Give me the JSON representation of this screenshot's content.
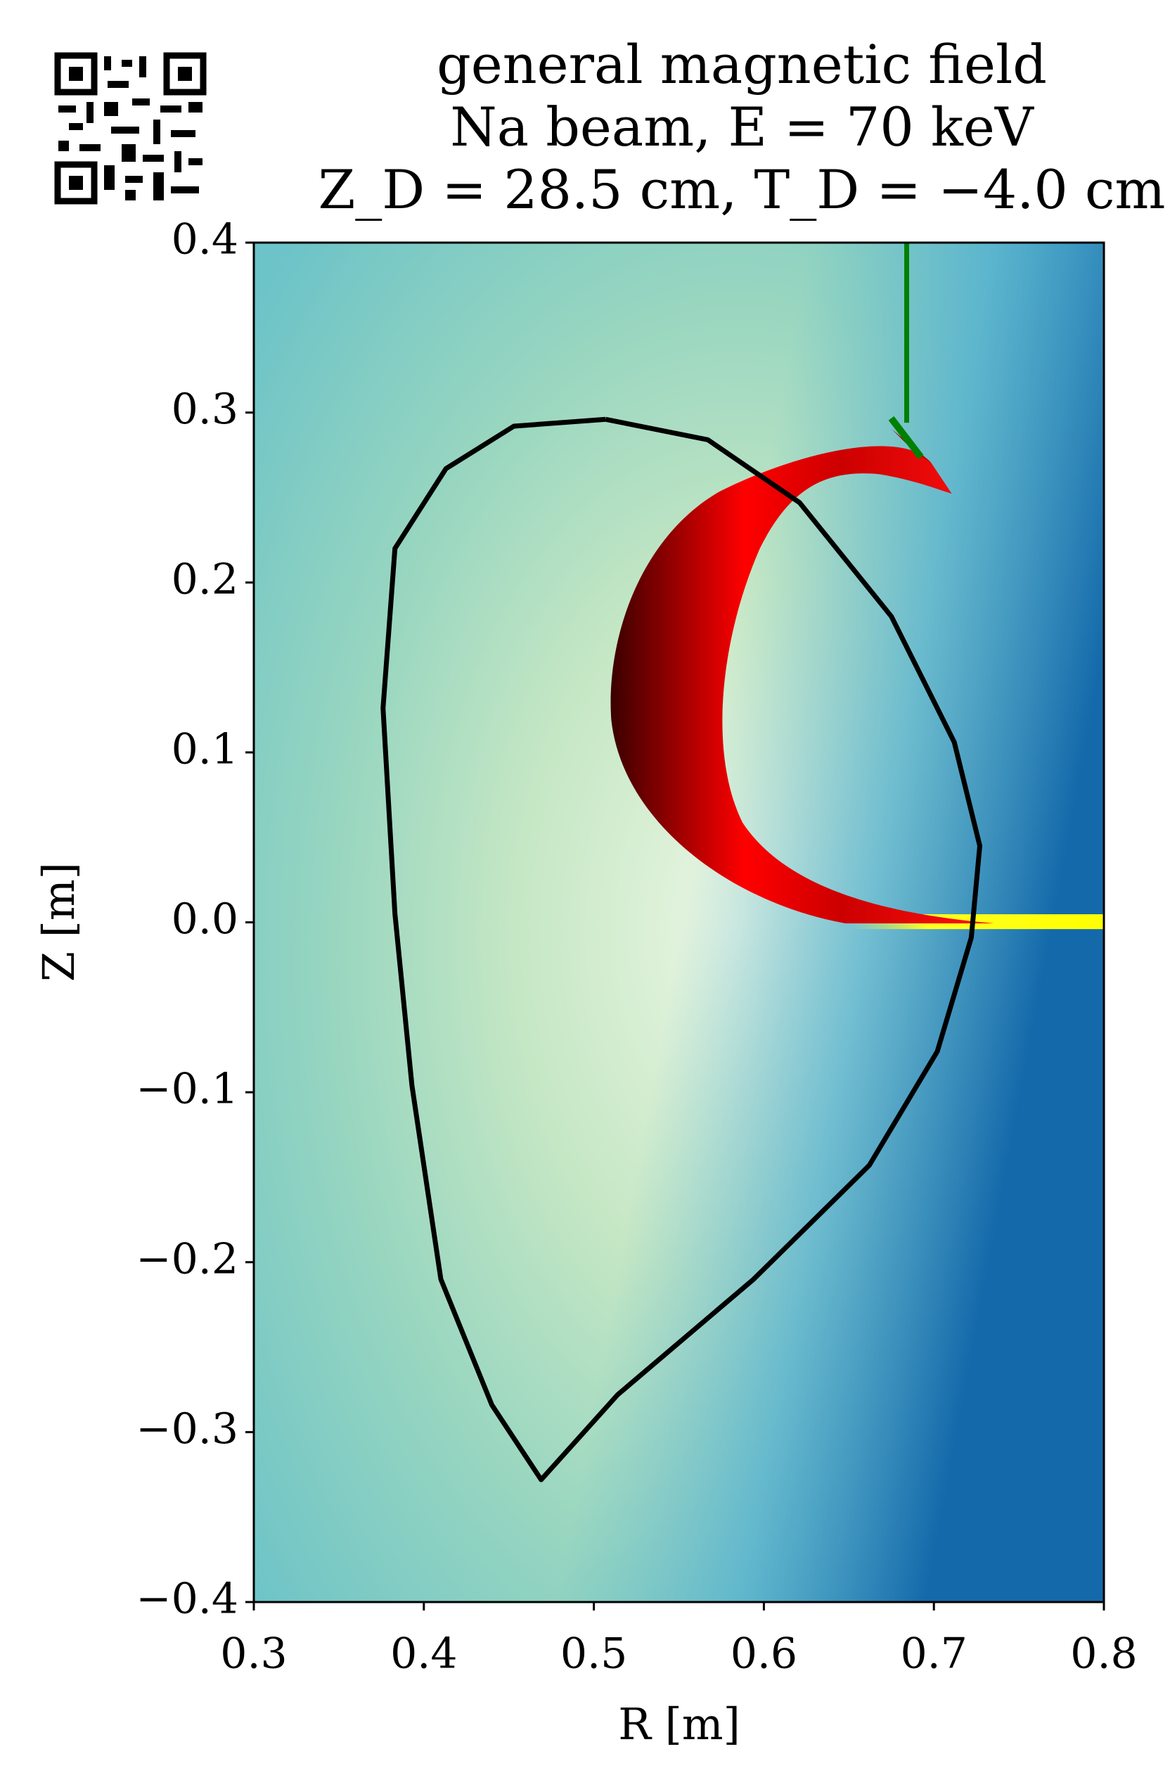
{
  "chart_data": {
    "type": "line",
    "title": [
      "general magnetic field",
      "Na beam, E = 70 keV",
      "Z_D = 28.5 cm, T_D = −4.0 cm"
    ],
    "xlabel": "R [m]",
    "ylabel": "Z [m]",
    "xlim": [
      0.3,
      0.8
    ],
    "ylim": [
      -0.4,
      0.4
    ],
    "xticks": [
      0.3,
      0.4,
      0.5,
      0.6,
      0.7,
      0.8
    ],
    "yticks": [
      0.4,
      0.3,
      0.2,
      0.1,
      {
        "value": 0,
        "label": "0.0"
      },
      {
        "value": -0.1,
        "label": "−0.1"
      },
      {
        "value": -0.2,
        "label": "−0.2"
      },
      {
        "value": -0.3,
        "label": "−0.3"
      },
      {
        "value": -0.4,
        "label": "−0.4"
      }
    ],
    "series": [
      {
        "color": "#000000",
        "x": [
          0.507,
          0.567,
          0.621,
          0.675,
          0.712,
          0.727,
          0.722,
          0.702,
          0.662,
          0.594,
          0.514,
          0.469,
          0.44,
          0.41,
          0.393,
          0.383,
          0.376,
          0.383,
          0.413,
          0.453,
          0.507
        ],
        "values": [
          0.296,
          0.284,
          0.247,
          0.18,
          0.106,
          0.045,
          -0.009,
          -0.076,
          -0.143,
          -0.21,
          -0.278,
          -0.328,
          -0.284,
          -0.21,
          -0.096,
          0.005,
          0.126,
          0.22,
          0.267,
          0.292,
          0.296
        ]
      },
      {
        "color": "#008000",
        "x": [
          0.684,
          0.684
        ],
        "values": [
          0.4,
          0.294
        ]
      }
    ]
  }
}
